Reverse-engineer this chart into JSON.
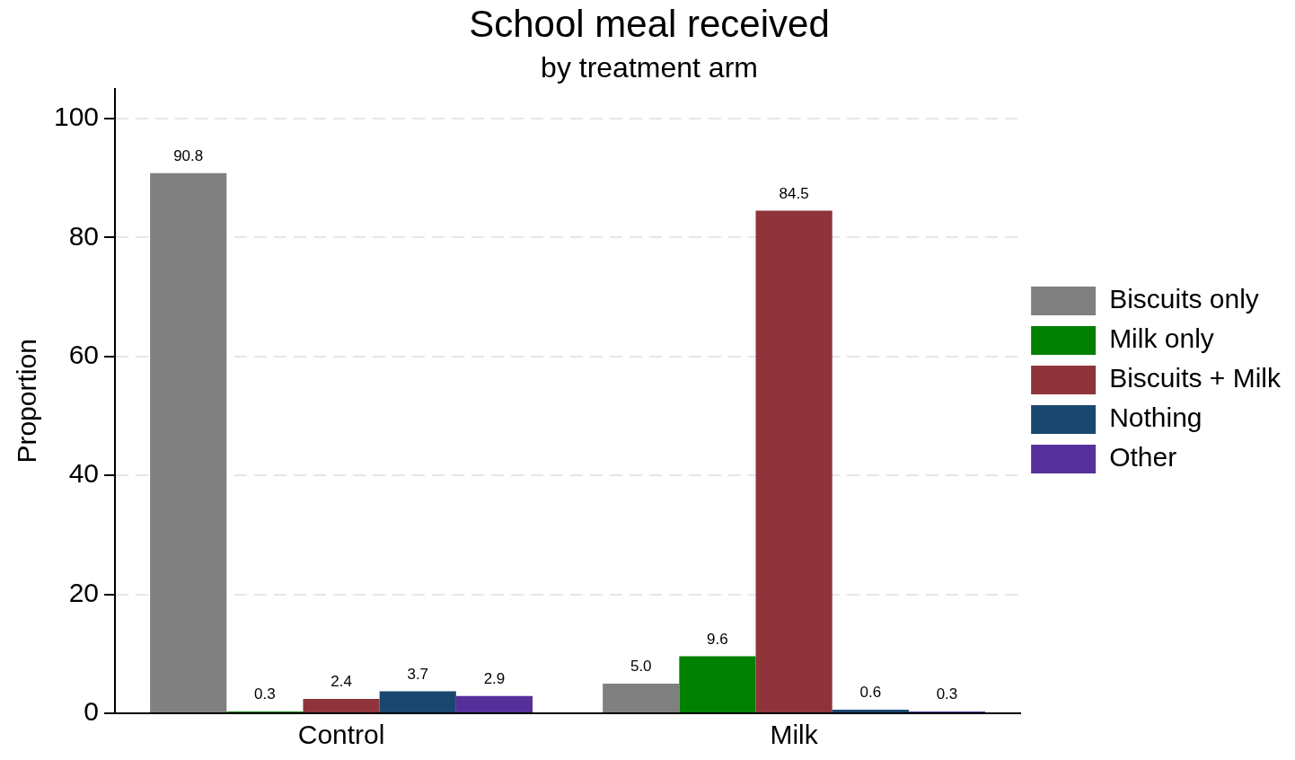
{
  "chart_data": {
    "type": "bar",
    "title": "School meal received",
    "subtitle": "by treatment arm",
    "ylabel": "Proportion",
    "categories": [
      "Control",
      "Milk"
    ],
    "series": [
      {
        "name": "Biscuits only",
        "color": "#808080",
        "values": [
          90.8,
          5.0
        ],
        "value_labels": [
          "90.8",
          "5.0"
        ]
      },
      {
        "name": "Milk only",
        "color": "#008000",
        "values": [
          0.3,
          9.6
        ],
        "value_labels": [
          "0.3",
          "9.6"
        ]
      },
      {
        "name": "Biscuits + Milk",
        "color": "#8f343a",
        "values": [
          2.4,
          84.5
        ],
        "value_labels": [
          "2.4",
          "84.5"
        ]
      },
      {
        "name": "Nothing",
        "color": "#1a476f",
        "values": [
          3.7,
          0.6
        ],
        "value_labels": [
          "3.7",
          "0.6"
        ]
      },
      {
        "name": "Other",
        "color": "#55309a",
        "values": [
          2.9,
          0.3
        ],
        "value_labels": [
          "2.9",
          "0.3"
        ]
      }
    ],
    "ylim": [
      0,
      105
    ],
    "yticks": [
      0,
      20,
      40,
      60,
      80,
      100
    ],
    "grid": "y",
    "legend": "right"
  }
}
